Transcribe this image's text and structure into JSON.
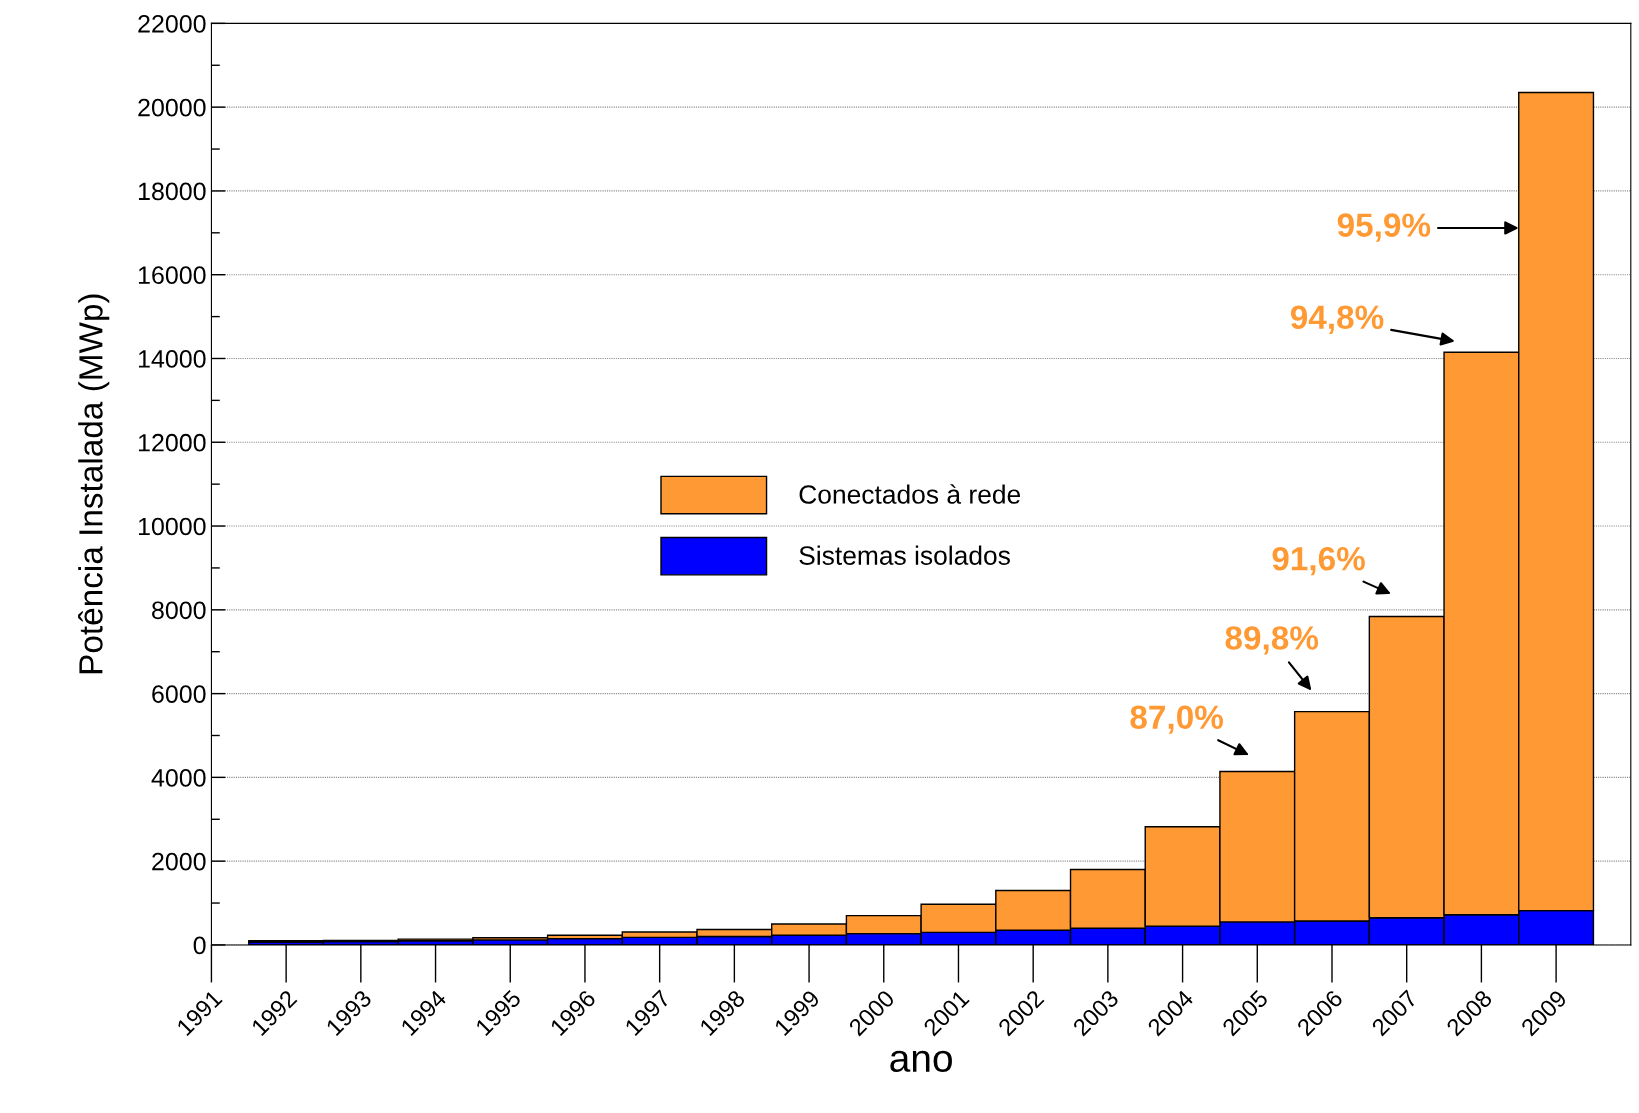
{
  "chart_data": {
    "type": "bar",
    "stacked": true,
    "xlabel": "ano",
    "ylabel": "Potência Instalada (MWp)",
    "x": [
      1992,
      1993,
      1994,
      1995,
      1996,
      1997,
      1998,
      1999,
      2000,
      2001,
      2002,
      2003,
      2004,
      2005,
      2006,
      2007,
      2008,
      2009
    ],
    "series": [
      {
        "name": "Sistemas isolados",
        "color": "#0000ff",
        "values": [
          70,
          80,
          100,
          120,
          150,
          180,
          200,
          230,
          270,
          300,
          350,
          400,
          450,
          550,
          570,
          650,
          720,
          820
        ]
      },
      {
        "name": "Conectados à rede",
        "color": "#ff9933",
        "values": [
          30,
          30,
          40,
          50,
          80,
          130,
          170,
          270,
          430,
          670,
          950,
          1400,
          2370,
          3590,
          5000,
          7190,
          13430,
          19530
        ]
      }
    ],
    "xlim": [
      1991,
      2010
    ],
    "xticks": [
      1991,
      1992,
      1993,
      1994,
      1995,
      1996,
      1997,
      1998,
      1999,
      2000,
      2001,
      2002,
      2003,
      2004,
      2005,
      2006,
      2007,
      2008,
      2009
    ],
    "ylim": [
      0,
      22000
    ],
    "yticks": [
      0,
      2000,
      4000,
      6000,
      8000,
      10000,
      12000,
      14000,
      16000,
      18000,
      20000,
      22000
    ],
    "grid": "y",
    "legend": "left",
    "annotations": [
      "87,0%",
      "89,8%",
      "91,6%",
      "94,8%",
      "95,9%"
    ]
  }
}
